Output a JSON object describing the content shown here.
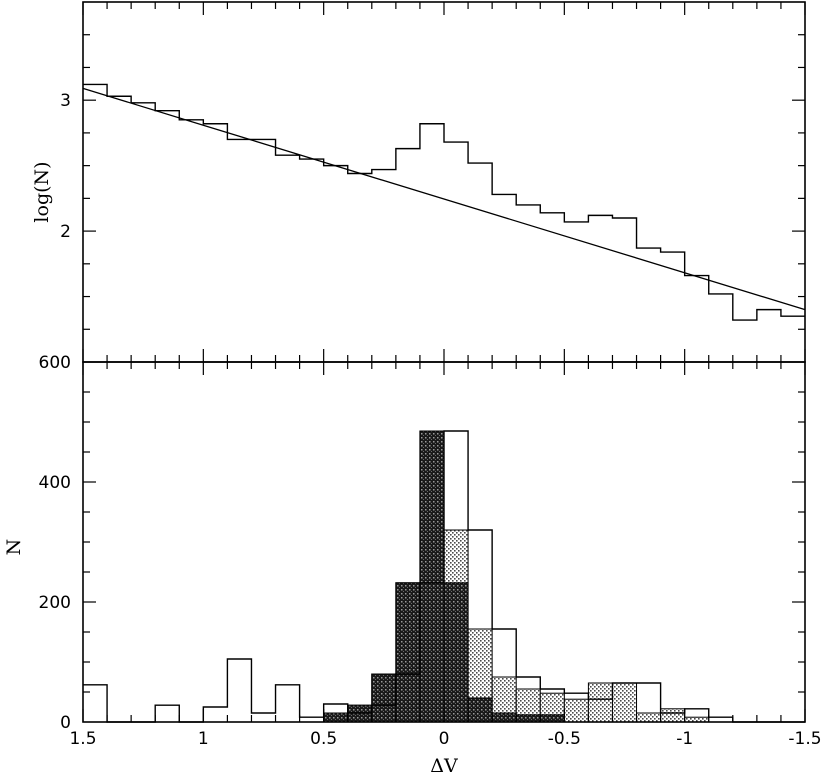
{
  "chart_data": [
    {
      "type": "line",
      "panel": "top",
      "ylabel": "log(N)",
      "xlabel": "",
      "xlim": [
        1.5,
        -1.5
      ],
      "ylim": [
        1.0,
        3.75
      ],
      "yticks": [
        {
          "value": 2,
          "label": "2"
        },
        {
          "value": 3,
          "label": "3"
        }
      ],
      "y_minor_step": 0.25,
      "bin_width": 0.1,
      "series": [
        {
          "style": "step",
          "edges": [
            1.5,
            1.4,
            1.3,
            1.2,
            1.1,
            1.0,
            0.9,
            0.8,
            0.7,
            0.6,
            0.5,
            0.4,
            0.3,
            0.2,
            0.1,
            0.0,
            -0.1,
            -0.2,
            -0.3,
            -0.4,
            -0.5,
            -0.6,
            -0.7,
            -0.8,
            -0.9,
            -1.0,
            -1.1,
            -1.2,
            -1.3,
            -1.4,
            -1.5
          ],
          "values": [
            3.12,
            3.03,
            2.98,
            2.92,
            2.85,
            2.82,
            2.7,
            2.7,
            2.58,
            2.55,
            2.5,
            2.44,
            2.47,
            2.63,
            2.82,
            2.68,
            2.52,
            2.28,
            2.2,
            2.14,
            2.07,
            2.12,
            2.1,
            1.87,
            1.84,
            1.66,
            1.52,
            1.32,
            1.4,
            1.35
          ]
        },
        {
          "style": "line",
          "x": [
            1.5,
            -1.5
          ],
          "y": [
            3.09,
            1.4
          ]
        }
      ]
    },
    {
      "type": "bar",
      "panel": "bottom",
      "xlabel": "ΔV",
      "ylabel": "N",
      "xlim": [
        1.5,
        -1.5
      ],
      "ylim": [
        0,
        600
      ],
      "xticks": [
        {
          "value": 1.5,
          "label": "1.5"
        },
        {
          "value": 1,
          "label": "1"
        },
        {
          "value": 0.5,
          "label": "0.5"
        },
        {
          "value": 0,
          "label": "0"
        },
        {
          "value": -0.5,
          "label": "-0.5"
        },
        {
          "value": -1,
          "label": "-1"
        },
        {
          "value": -1.5,
          "label": "-1.5"
        }
      ],
      "yticks": [
        {
          "value": 0,
          "label": "0"
        },
        {
          "value": 200,
          "label": "200"
        },
        {
          "value": 400,
          "label": "400"
        },
        {
          "value": 600,
          "label": "600"
        }
      ],
      "y_minor_step": 50,
      "bin_width": 0.1,
      "series": [
        {
          "style": "step",
          "edges": [
            1.5,
            1.4,
            1.3,
            1.2,
            1.1,
            1.0,
            0.9,
            0.8,
            0.7,
            0.6,
            0.5,
            0.4,
            0.3,
            0.2,
            0.1,
            0.0,
            -0.1,
            -0.2,
            -0.3,
            -0.4,
            -0.5,
            -0.6,
            -0.7,
            -0.8,
            -0.9,
            -1.0,
            -1.1,
            -1.2,
            -1.3,
            -1.4,
            -1.5
          ],
          "values": [
            62,
            0,
            0,
            28,
            0,
            25,
            105,
            15,
            62,
            8,
            30,
            15,
            28,
            80,
            232,
            485,
            320,
            155,
            75,
            55,
            48,
            38,
            65,
            65,
            15,
            22,
            8,
            0,
            0,
            0
          ]
        },
        {
          "style": "filled-light",
          "centers": [
            0.45,
            0.35,
            0.25,
            0.15,
            0.05,
            -0.05,
            -0.15,
            -0.25,
            -0.35,
            -0.45,
            -0.55,
            -0.65,
            -0.75,
            -0.85,
            -0.95,
            -1.05
          ],
          "values": [
            15,
            28,
            80,
            232,
            485,
            320,
            155,
            75,
            55,
            48,
            38,
            65,
            65,
            15,
            22,
            8
          ]
        },
        {
          "style": "filled-dark",
          "centers": [
            0.45,
            0.35,
            0.25,
            0.15,
            0.05,
            -0.05,
            -0.15,
            -0.25,
            -0.35,
            -0.45
          ],
          "values": [
            15,
            28,
            80,
            232,
            485,
            232,
            40,
            15,
            12,
            12
          ]
        }
      ]
    }
  ],
  "colors": {
    "ink": "#000000",
    "light_fill": "#b8b8b8",
    "dark_fill": "#2e2e2e"
  }
}
